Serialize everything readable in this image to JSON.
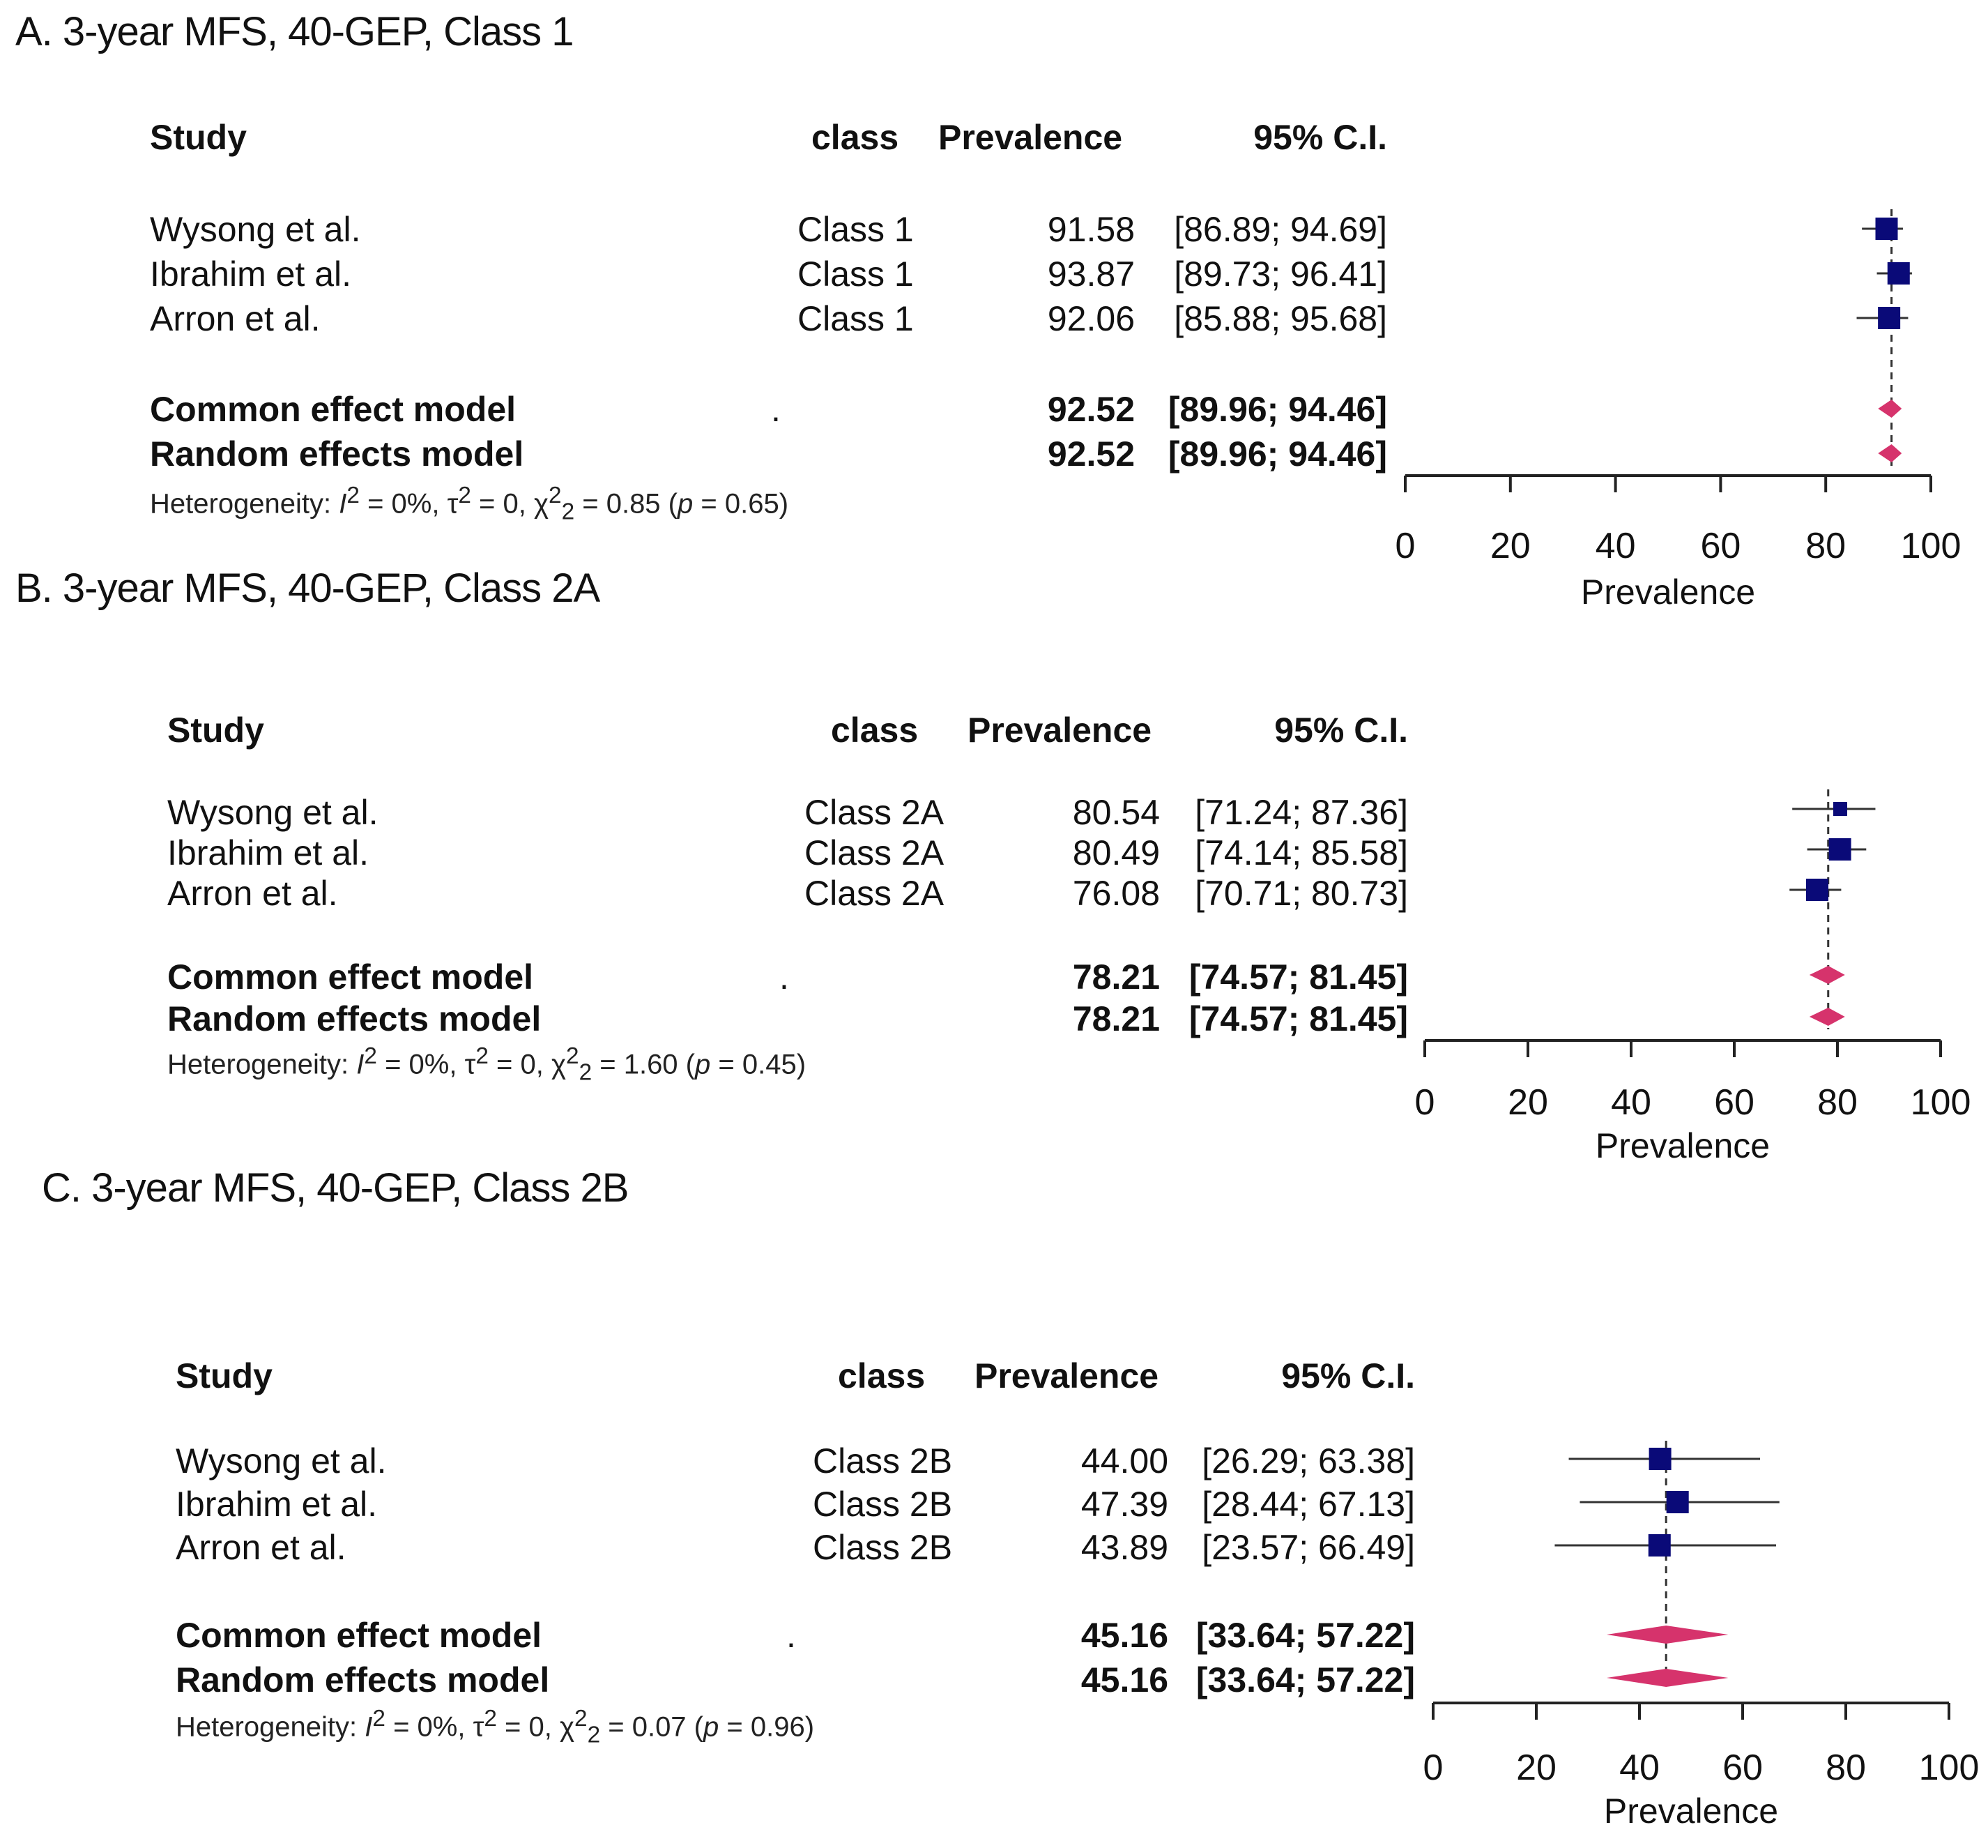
{
  "chart_data": [
    {
      "type": "forest",
      "title": "A.  3-year MFS, 40-GEP, Class 1",
      "columns": {
        "study": "Study",
        "class": "class",
        "prevalence": "Prevalence",
        "ci": "95% C.I."
      },
      "studies": [
        {
          "name": "Wysong et al.",
          "class": "Class 1",
          "prevalence": "91.58",
          "ci": "[86.89; 94.69]",
          "value": 91.58,
          "lower": 86.89,
          "upper": 94.69
        },
        {
          "name": "Ibrahim et al.",
          "class": "Class 1",
          "prevalence": "93.87",
          "ci": "[89.73; 96.41]",
          "value": 93.87,
          "lower": 89.73,
          "upper": 96.41
        },
        {
          "name": "Arron et al.",
          "class": "Class 1",
          "prevalence": "92.06",
          "ci": "[85.88; 95.68]",
          "value": 92.06,
          "lower": 85.88,
          "upper": 95.68
        }
      ],
      "models": [
        {
          "name": "Common effect model",
          "class": ".",
          "prevalence": "92.52",
          "ci": "[89.96; 94.46]",
          "value": 92.52,
          "lower": 89.96,
          "upper": 94.46
        },
        {
          "name": "Random effects model",
          "class": "",
          "prevalence": "92.52",
          "ci": "[89.96; 94.46]",
          "value": 92.52,
          "lower": 89.96,
          "upper": 94.46
        }
      ],
      "heterogeneity": {
        "prefix": "Heterogeneity: ",
        "i2": "0%",
        "tau2": "0",
        "chi2": "0.85",
        "df": "2",
        "p": "0.65"
      },
      "xlim": [
        0,
        100
      ],
      "xticks": [
        "0",
        "20",
        "40",
        "60",
        "80",
        "100"
      ],
      "xlabel": "Prevalence"
    },
    {
      "type": "forest",
      "title": "B.  3-year MFS, 40-GEP, Class 2A",
      "columns": {
        "study": "Study",
        "class": "class",
        "prevalence": "Prevalence",
        "ci": "95% C.I."
      },
      "studies": [
        {
          "name": "Wysong et al.",
          "class": "Class 2A",
          "prevalence": "80.54",
          "ci": "[71.24; 87.36]",
          "value": 80.54,
          "lower": 71.24,
          "upper": 87.36
        },
        {
          "name": "Ibrahim et al.",
          "class": "Class 2A",
          "prevalence": "80.49",
          "ci": "[74.14; 85.58]",
          "value": 80.49,
          "lower": 74.14,
          "upper": 85.58
        },
        {
          "name": "Arron et al.",
          "class": "Class 2A",
          "prevalence": "76.08",
          "ci": "[70.71; 80.73]",
          "value": 76.08,
          "lower": 70.71,
          "upper": 80.73
        }
      ],
      "models": [
        {
          "name": "Common effect model",
          "class": ".",
          "prevalence": "78.21",
          "ci": "[74.57; 81.45]",
          "value": 78.21,
          "lower": 74.57,
          "upper": 81.45
        },
        {
          "name": "Random effects model",
          "class": "",
          "prevalence": "78.21",
          "ci": "[74.57; 81.45]",
          "value": 78.21,
          "lower": 74.57,
          "upper": 81.45
        }
      ],
      "heterogeneity": {
        "prefix": "Heterogeneity: ",
        "i2": "0%",
        "tau2": "0",
        "chi2": "1.60",
        "df": "2",
        "p": "0.45"
      },
      "xlim": [
        0,
        100
      ],
      "xticks": [
        "0",
        "20",
        "40",
        "60",
        "80",
        "100"
      ],
      "xlabel": "Prevalence"
    },
    {
      "type": "forest",
      "title": "C.  3-year MFS, 40-GEP, Class 2B",
      "columns": {
        "study": "Study",
        "class": "class",
        "prevalence": "Prevalence",
        "ci": "95% C.I."
      },
      "studies": [
        {
          "name": "Wysong et al.",
          "class": "Class 2B",
          "prevalence": "44.00",
          "ci": "[26.29; 63.38]",
          "value": 44.0,
          "lower": 26.29,
          "upper": 63.38
        },
        {
          "name": "Ibrahim et al.",
          "class": "Class 2B",
          "prevalence": "47.39",
          "ci": "[28.44; 67.13]",
          "value": 47.39,
          "lower": 28.44,
          "upper": 67.13
        },
        {
          "name": "Arron et al.",
          "class": "Class 2B",
          "prevalence": "43.89",
          "ci": "[23.57; 66.49]",
          "value": 43.89,
          "lower": 23.57,
          "upper": 66.49
        }
      ],
      "models": [
        {
          "name": "Common effect model",
          "class": ".",
          "prevalence": "45.16",
          "ci": "[33.64; 57.22]",
          "value": 45.16,
          "lower": 33.64,
          "upper": 57.22
        },
        {
          "name": "Random effects model",
          "class": "",
          "prevalence": "45.16",
          "ci": "[33.64; 57.22]",
          "value": 45.16,
          "lower": 33.64,
          "upper": 57.22
        }
      ],
      "heterogeneity": {
        "prefix": "Heterogeneity: ",
        "i2": "0%",
        "tau2": "0",
        "chi2": "0.07",
        "df": "2",
        "p": "0.96"
      },
      "xlim": [
        0,
        100
      ],
      "xticks": [
        "0",
        "20",
        "40",
        "60",
        "80",
        "100"
      ],
      "xlabel": "Prevalence"
    }
  ],
  "colors": {
    "study_box": "#0a0a78",
    "diamond": "#d6336c",
    "axis": "#222222",
    "text": "#111111"
  }
}
